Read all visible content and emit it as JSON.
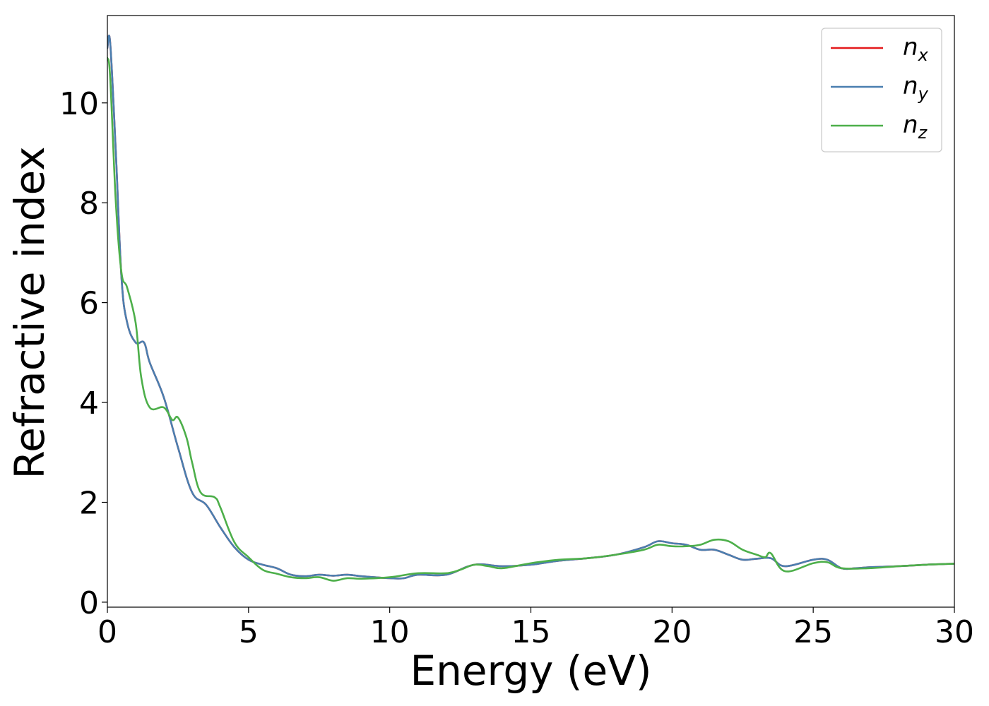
{
  "chart_data": {
    "type": "line",
    "xlabel": "Energy (eV)",
    "ylabel": "Refractive index",
    "xlim": [
      0,
      30
    ],
    "ylim": [
      -0.1,
      11.75
    ],
    "xticks": [
      0,
      5,
      10,
      15,
      20,
      25,
      30
    ],
    "xtick_labels": [
      "0",
      "5",
      "10",
      "15",
      "20",
      "25",
      "30"
    ],
    "yticks": [
      0,
      2,
      4,
      6,
      8,
      10
    ],
    "ytick_labels": [
      "0",
      "2",
      "4",
      "6",
      "8",
      "10"
    ],
    "grid": false,
    "legend_position": "top-right",
    "series": [
      {
        "name": "n_x",
        "label_main": "n",
        "label_sub": "x",
        "color": "#e41a1c",
        "x": [
          0,
          0.1,
          0.3,
          0.5,
          0.7,
          1.0,
          1.3,
          1.5,
          2.0,
          2.5,
          3.0,
          3.5,
          4.0,
          4.5,
          5.0,
          5.5,
          6.0,
          6.5,
          7.0,
          7.5,
          8.0,
          8.5,
          9.0,
          10.0,
          10.5,
          11.0,
          12.0,
          13.0,
          14.0,
          15.0,
          16.0,
          17.0,
          18.0,
          19.0,
          19.5,
          20.0,
          20.5,
          21.0,
          21.5,
          22.0,
          22.5,
          23.0,
          23.5,
          24.0,
          25.0,
          25.5,
          26.0,
          26.5,
          27.0,
          28.0,
          29.0,
          30.0
        ],
        "y": [
          11.1,
          11.2,
          9.0,
          6.5,
          5.6,
          5.2,
          5.2,
          4.8,
          4.1,
          3.1,
          2.2,
          1.95,
          1.5,
          1.1,
          0.85,
          0.75,
          0.68,
          0.55,
          0.52,
          0.55,
          0.53,
          0.55,
          0.52,
          0.48,
          0.48,
          0.55,
          0.55,
          0.75,
          0.72,
          0.75,
          0.83,
          0.88,
          0.95,
          1.1,
          1.22,
          1.18,
          1.15,
          1.05,
          1.05,
          0.95,
          0.85,
          0.87,
          0.88,
          0.72,
          0.85,
          0.85,
          0.68,
          0.68,
          0.7,
          0.72,
          0.75,
          0.77
        ]
      },
      {
        "name": "n_y",
        "label_main": "n",
        "label_sub": "y",
        "color": "#4a7fb0",
        "x": [
          0,
          0.1,
          0.3,
          0.5,
          0.7,
          1.0,
          1.3,
          1.5,
          2.0,
          2.5,
          3.0,
          3.5,
          4.0,
          4.5,
          5.0,
          5.5,
          6.0,
          6.5,
          7.0,
          7.5,
          8.0,
          8.5,
          9.0,
          10.0,
          10.5,
          11.0,
          12.0,
          13.0,
          14.0,
          15.0,
          16.0,
          17.0,
          18.0,
          19.0,
          19.5,
          20.0,
          20.5,
          21.0,
          21.5,
          22.0,
          22.5,
          23.0,
          23.5,
          24.0,
          25.0,
          25.5,
          26.0,
          26.5,
          27.0,
          28.0,
          29.0,
          30.0
        ],
        "y": [
          11.1,
          11.2,
          9.0,
          6.5,
          5.6,
          5.2,
          5.2,
          4.8,
          4.1,
          3.1,
          2.2,
          1.95,
          1.5,
          1.1,
          0.85,
          0.75,
          0.68,
          0.55,
          0.52,
          0.55,
          0.53,
          0.55,
          0.52,
          0.48,
          0.48,
          0.55,
          0.55,
          0.75,
          0.72,
          0.75,
          0.83,
          0.88,
          0.95,
          1.1,
          1.22,
          1.18,
          1.15,
          1.05,
          1.05,
          0.95,
          0.85,
          0.87,
          0.88,
          0.72,
          0.85,
          0.85,
          0.68,
          0.68,
          0.7,
          0.72,
          0.75,
          0.77
        ]
      },
      {
        "name": "n_z",
        "label_main": "n",
        "label_sub": "z",
        "color": "#4daf4a",
        "x": [
          0,
          0.1,
          0.3,
          0.5,
          0.7,
          1.0,
          1.2,
          1.5,
          2.0,
          2.3,
          2.5,
          2.8,
          3.0,
          3.3,
          3.8,
          4.0,
          4.5,
          5.0,
          5.5,
          6.0,
          6.5,
          7.0,
          7.5,
          8.0,
          8.5,
          9.0,
          10.0,
          11.0,
          12.0,
          12.5,
          13.0,
          13.5,
          14.0,
          15.0,
          16.0,
          17.0,
          18.0,
          19.0,
          19.5,
          20.0,
          20.5,
          21.0,
          21.5,
          22.0,
          22.5,
          23.0,
          23.3,
          23.5,
          24.0,
          25.0,
          25.5,
          26.0,
          27.0,
          28.0,
          29.0,
          30.0
        ],
        "y": [
          10.9,
          10.5,
          8.0,
          6.6,
          6.3,
          5.6,
          4.5,
          3.9,
          3.9,
          3.65,
          3.7,
          3.3,
          2.8,
          2.2,
          2.1,
          1.9,
          1.2,
          0.9,
          0.65,
          0.57,
          0.5,
          0.48,
          0.5,
          0.43,
          0.48,
          0.47,
          0.5,
          0.58,
          0.58,
          0.65,
          0.75,
          0.72,
          0.68,
          0.78,
          0.85,
          0.88,
          0.95,
          1.05,
          1.15,
          1.12,
          1.12,
          1.15,
          1.25,
          1.22,
          1.05,
          0.95,
          0.9,
          0.98,
          0.62,
          0.78,
          0.8,
          0.68,
          0.68,
          0.72,
          0.75,
          0.77
        ]
      }
    ]
  }
}
